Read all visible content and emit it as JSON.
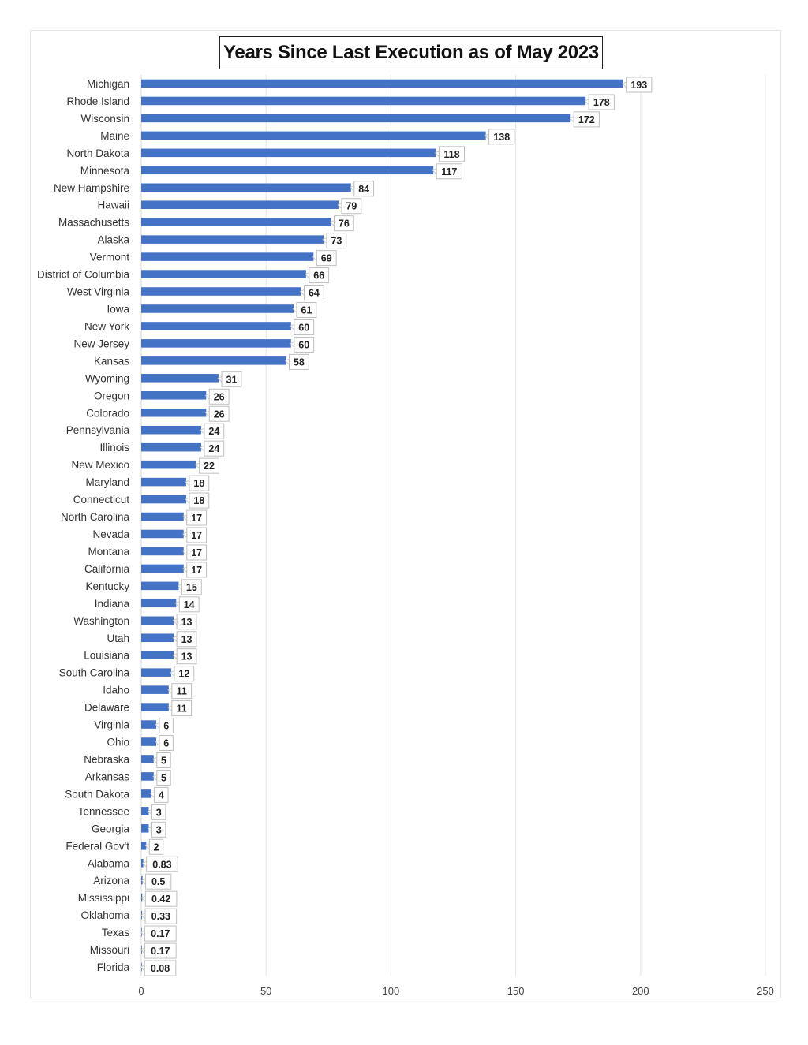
{
  "chart_data": {
    "type": "bar",
    "orientation": "horizontal",
    "title": "Years Since Last Execution as of May 2023",
    "xlabel": "",
    "ylabel": "",
    "xlim": [
      0,
      250
    ],
    "x_ticks": [
      0,
      50,
      100,
      150,
      200,
      250
    ],
    "grid": true,
    "bar_color": "#4472c4",
    "categories": [
      "Michigan",
      "Rhode Island",
      "Wisconsin",
      "Maine",
      "North Dakota",
      "Minnesota",
      "New Hampshire",
      "Hawaii",
      "Massachusetts",
      "Alaska",
      "Vermont",
      "District of Columbia",
      "West Virginia",
      "Iowa",
      "New York",
      "New Jersey",
      "Kansas",
      "Wyoming",
      "Oregon",
      "Colorado",
      "Pennsylvania",
      "Illinois",
      "New Mexico",
      "Maryland",
      "Connecticut",
      "North Carolina",
      "Nevada",
      "Montana",
      "California",
      "Kentucky",
      "Indiana",
      "Washington",
      "Utah",
      "Louisiana",
      "South Carolina",
      "Idaho",
      "Delaware",
      "Virginia",
      "Ohio",
      "Nebraska",
      "Arkansas",
      "South Dakota",
      "Tennessee",
      "Georgia",
      "Federal Gov't",
      "Alabama",
      "Arizona",
      "Mississippi",
      "Oklahoma",
      "Texas",
      "Missouri",
      "Florida"
    ],
    "values": [
      193,
      178,
      172,
      138,
      118,
      117,
      84,
      79,
      76,
      73,
      69,
      66,
      64,
      61,
      60,
      60,
      58,
      31,
      26,
      26,
      24,
      24,
      22,
      18,
      18,
      17,
      17,
      17,
      17,
      15,
      14,
      13,
      13,
      13,
      12,
      11,
      11,
      6,
      6,
      5,
      5,
      4,
      3,
      3,
      2,
      0.83,
      0.5,
      0.42,
      0.33,
      0.17,
      0.17,
      0.08
    ]
  }
}
